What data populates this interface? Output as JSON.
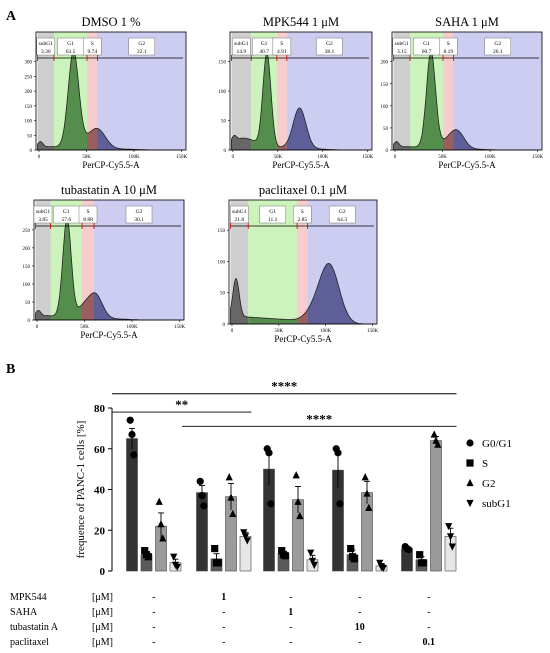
{
  "figure": {
    "panel_a_label": "A",
    "panel_b_label": "B"
  },
  "histograms": [
    {
      "title": "DMSO 1 %",
      "xlabel": "PerCP-Cy5.5-A",
      "yticks": [
        "0",
        "50",
        "100",
        "150",
        "200",
        "250",
        "300"
      ],
      "xticks": [
        "0",
        "50K",
        "100K",
        "150K"
      ],
      "gates": [
        {
          "label": "subG1",
          "value": "3.30"
        },
        {
          "label": "G1",
          "value": "63.5"
        },
        {
          "label": "S",
          "value": "9.74"
        },
        {
          "label": "G2",
          "value": "22.1"
        }
      ]
    },
    {
      "title": "MPK544 1 μM",
      "xlabel": "PerCP-Cy5.5-A",
      "yticks": [
        "0",
        "50",
        "100",
        "150"
      ],
      "xticks": [
        "0",
        "50K",
        "100K",
        "150K"
      ],
      "gates": [
        {
          "label": "subG1",
          "value": "14.9"
        },
        {
          "label": "G1",
          "value": "40.7"
        },
        {
          "label": "S",
          "value": "4.91"
        },
        {
          "label": "G2",
          "value": "38.1"
        }
      ]
    },
    {
      "title": "SAHA 1 μM",
      "xlabel": "PerCP-Cy5.5-A",
      "yticks": [
        "0",
        "50",
        "100",
        "150",
        "200"
      ],
      "xticks": [
        "0",
        "50K",
        "100K",
        "150K"
      ],
      "gates": [
        {
          "label": "subG1",
          "value": "3.15"
        },
        {
          "label": "G1",
          "value": "60.7"
        },
        {
          "label": "S",
          "value": "8.19"
        },
        {
          "label": "G2",
          "value": "26.1"
        }
      ]
    },
    {
      "title": "tubastatin A 10 μM",
      "xlabel": "PerCP-Cy5.5-A",
      "yticks": [
        "0",
        "50",
        "100",
        "150",
        "200",
        "250"
      ],
      "xticks": [
        "0",
        "50K",
        "100K",
        "150K"
      ],
      "gates": [
        {
          "label": "subG1",
          "value": "3.85"
        },
        {
          "label": "G1",
          "value": "57.6"
        },
        {
          "label": "S",
          "value": "8.88"
        },
        {
          "label": "G2",
          "value": "30.1"
        }
      ]
    },
    {
      "title": "paclitaxel 0.1 μM",
      "xlabel": "PerCP-Cy5.5-A",
      "yticks": [
        "0",
        "50",
        "100",
        "150"
      ],
      "xticks": [
        "0",
        "50K",
        "100K",
        "150K"
      ],
      "gates": [
        {
          "label": "subG1",
          "value": "21.8"
        },
        {
          "label": "G1",
          "value": "11.1"
        },
        {
          "label": "S",
          "value": "2.85"
        },
        {
          "label": "G2",
          "value": "64.3"
        }
      ]
    }
  ],
  "chart_data": {
    "type": "bar",
    "ylabel": "frequence of PANC-1 cells [%]",
    "ylim": [
      0,
      80
    ],
    "yticks": [
      0,
      20,
      40,
      60,
      80
    ],
    "groups": [
      "DMSO 1 %",
      "MPK544 1 μM",
      "SAHA 1 μM",
      "tubastatin A 10 μM",
      "paclitaxel 0.1 μM"
    ],
    "series": [
      {
        "name": "G0/G1",
        "color": "#333333",
        "marker": "circle",
        "values": [
          65,
          38.5,
          50,
          49.5,
          11
        ],
        "errors": [
          5,
          3.5,
          8,
          8.5,
          0.8
        ],
        "points": [
          [
            74,
            67,
            57
          ],
          [
            44,
            37,
            32
          ],
          [
            60,
            58,
            33
          ],
          [
            60,
            58,
            33
          ],
          [
            12,
            11,
            10.5
          ]
        ]
      },
      {
        "name": "S",
        "color": "#5a5a5a",
        "marker": "square",
        "values": [
          8,
          6,
          8.5,
          8,
          5.5
        ],
        "errors": [
          1.3,
          2.5,
          1.2,
          2.3,
          1.5
        ],
        "points": [
          [
            10,
            8,
            7
          ],
          [
            11,
            4,
            4
          ],
          [
            10,
            8,
            7.5
          ],
          [
            11,
            7,
            6
          ],
          [
            8,
            4,
            4
          ]
        ]
      },
      {
        "name": "G2",
        "color": "#9b9b9b",
        "marker": "triangle-up",
        "values": [
          22,
          36.5,
          35,
          38.5,
          64
        ],
        "errors": [
          6.5,
          6.5,
          6.5,
          5.5,
          2
        ],
        "points": [
          [
            34,
            23,
            16
          ],
          [
            46,
            36,
            28
          ],
          [
            47,
            34,
            27
          ],
          [
            46,
            38,
            31
          ],
          [
            67,
            64,
            62
          ]
        ]
      },
      {
        "name": "subG1",
        "color": "#e6e6e6",
        "marker": "triangle-down",
        "values": [
          4,
          17,
          5.5,
          2.5,
          17
        ],
        "errors": [
          1.8,
          2,
          2.2,
          1.2,
          4
        ],
        "points": [
          [
            7,
            3,
            2
          ],
          [
            19,
            17,
            15
          ],
          [
            9,
            5,
            3
          ],
          [
            4,
            2,
            1.5
          ],
          [
            22,
            17,
            12
          ]
        ]
      }
    ],
    "significance": [
      {
        "label": "**",
        "from_group": 0,
        "to_group": 1,
        "level": 78
      },
      {
        "label": "****",
        "from_group": 0,
        "to_group": 4,
        "level": 87
      },
      {
        "label": "****",
        "from_group": 1,
        "to_group": 4,
        "level": 71
      }
    ],
    "legend": [
      "G0/G1",
      "S",
      "G2",
      "subG1"
    ],
    "treatment_table": {
      "rows": [
        {
          "name": "MPK544",
          "unit": "[μM]",
          "cells": [
            "-",
            "1",
            "-",
            "-",
            "-"
          ]
        },
        {
          "name": "SAHA",
          "unit": "[μM]",
          "cells": [
            "-",
            "-",
            "1",
            "-",
            "-"
          ]
        },
        {
          "name": "tubastatin A",
          "unit": "[μM]",
          "cells": [
            "-",
            "-",
            "-",
            "10",
            "-"
          ]
        },
        {
          "name": "paclitaxel",
          "unit": "[μM]",
          "cells": [
            "-",
            "-",
            "-",
            "-",
            "0.1"
          ]
        }
      ]
    }
  }
}
